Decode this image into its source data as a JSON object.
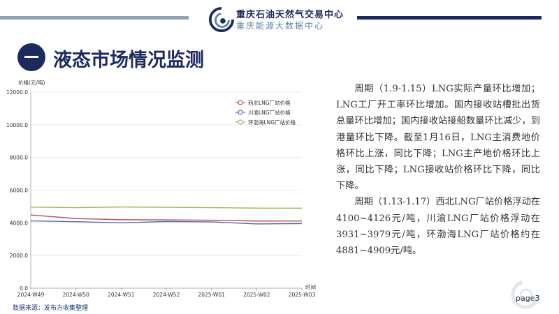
{
  "header": {
    "org_name": "重庆石油天然气交易中心",
    "org_sub": "重庆能源大数据中心"
  },
  "section": {
    "number": "一",
    "title": "液态市场情况监测"
  },
  "chart_data": {
    "type": "line",
    "ylabel": "价格(元/吨)",
    "xlabel": "时间",
    "categories": [
      "2024-W49",
      "2024-W50",
      "2024-W51",
      "2024-W52",
      "2025-W01",
      "2025-W02",
      "2025-W03"
    ],
    "ylim": [
      0,
      12000
    ],
    "yticks": [
      "0.0",
      "2000.0",
      "4000.0",
      "6000.0",
      "8000.0",
      "10000.0",
      "12000.0"
    ],
    "grid": "horizontal",
    "legend_position": "top-right",
    "series": [
      {
        "name": "西北LNG厂站价格",
        "color": "#c0504d",
        "values": [
          4480,
          4260,
          4190,
          4180,
          4160,
          4110,
          4113
        ]
      },
      {
        "name": "川渝LNG厂站价格",
        "color": "#4f6fa8",
        "values": [
          4120,
          4070,
          4000,
          4080,
          4060,
          3930,
          3955
        ]
      },
      {
        "name": "环渤海LNG厂站价格",
        "color": "#9bbb59",
        "values": [
          4960,
          4930,
          4970,
          4950,
          4930,
          4900,
          4895
        ]
      }
    ]
  },
  "description": {
    "p1": "周期（1.9-1.15）LNG实际产量环比增加；LNG工厂开工率环比增加。国内接收站槽批出货总量环比增加；国内接收站接船数量环比减少，到港量环比下降。截至1月16日，LNG主消费地价格环比上涨，同比下降；LNG主产地价格环比上涨，同比下降；LNG接收站价格环比下降，同比下降。",
    "p2": "周期（1.13-1.17）西北LNG厂站价格浮动在4100~4126元/吨，川渝LNG厂站价格浮动在3931~3979元/吨，环渤海LNG厂站价格约在4881~4909元/吨。"
  },
  "footer": {
    "source": "数据来源：发布方收集整理",
    "page": "page3"
  }
}
